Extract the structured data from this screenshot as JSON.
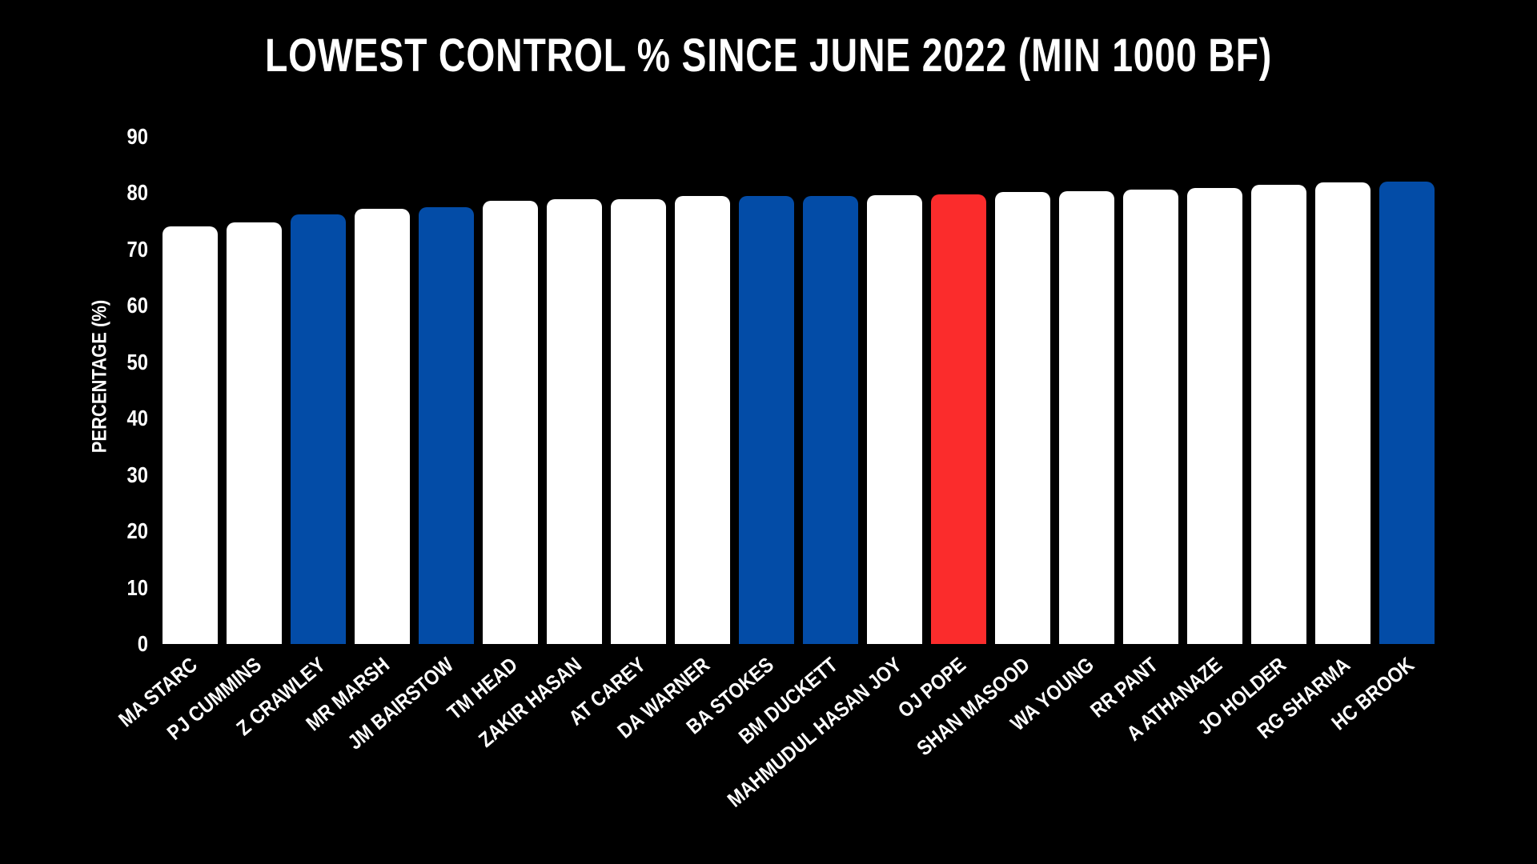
{
  "title": "LOWEST CONTROL % SINCE JUNE 2022 (MIN 1000 BF)",
  "chart_data": {
    "type": "bar",
    "title": "LOWEST CONTROL % SINCE JUNE 2022 (MIN 1000 BF)",
    "xlabel": "",
    "ylabel": "PERCENTAGE (%)",
    "ylim": [
      0,
      90
    ],
    "yticks": [
      0,
      10,
      20,
      30,
      40,
      50,
      60,
      70,
      80,
      90
    ],
    "grid": false,
    "legend": "none",
    "background_color": "#000000",
    "text_color": "#ffffff",
    "categories": [
      "MA STARC",
      "PJ CUMMINS",
      "Z CRAWLEY",
      "MR MARSH",
      "JM BAIRSTOW",
      "TM HEAD",
      "ZAKIR HASAN",
      "AT CAREY",
      "DA WARNER",
      "BA STOKES",
      "BM DUCKETT",
      "MAHMUDUL HASAN JOY",
      "OJ POPE",
      "SHAN MASOOD",
      "WA YOUNG",
      "RR PANT",
      "A ATHANAZE",
      "JO HOLDER",
      "RG SHARMA",
      "HC BROOK"
    ],
    "values": [
      74.1,
      74.8,
      76.1,
      77.1,
      77.5,
      78.6,
      78.8,
      78.9,
      79.4,
      79.5,
      79.5,
      79.6,
      79.7,
      80.2,
      80.3,
      80.6,
      80.8,
      81.4,
      81.8,
      82.0
    ],
    "bar_colors": [
      "white",
      "white",
      "blue",
      "white",
      "blue",
      "white",
      "white",
      "white",
      "white",
      "blue",
      "blue",
      "white",
      "red",
      "white",
      "white",
      "white",
      "white",
      "white",
      "white",
      "blue"
    ],
    "palette": {
      "white": "#ffffff",
      "blue": "#034CA7",
      "red": "#FB2C2C"
    }
  }
}
